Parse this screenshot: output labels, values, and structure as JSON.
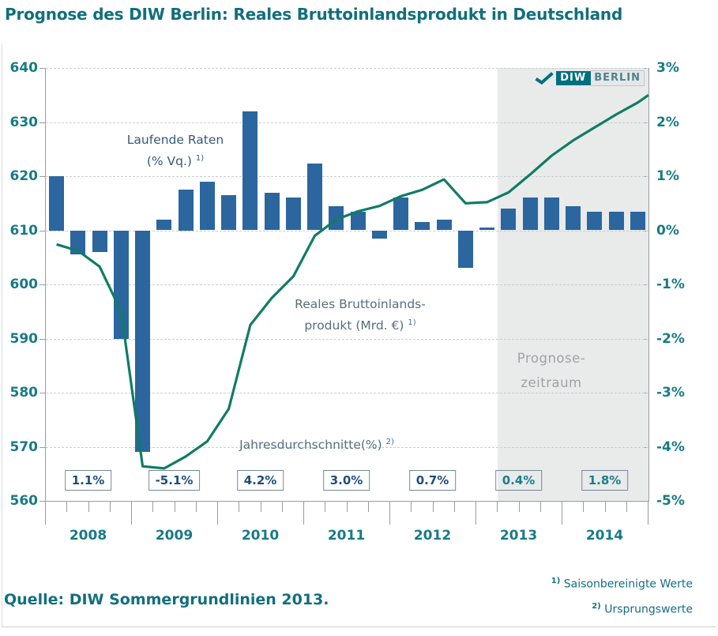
{
  "title": "Prognose des DIW Berlin: Reales Bruttoinlandsprodukt in Deutschland",
  "logo": {
    "diw": "DIW",
    "berlin": "BERLIN"
  },
  "source": "Quelle: DIW Sommergrundlinien 2013.",
  "footnotes": [
    {
      "sup": "1)",
      "text": "Saisonbereinigte Werte"
    },
    {
      "sup": "2)",
      "text": "Ursprungswerte"
    }
  ],
  "labels": {
    "bars_line1": "Laufende Raten",
    "bars_line2": "(% Vq.)",
    "bars_sup": "1)",
    "line_line1": "Reales Bruttoinlands-",
    "line_line2": "produkt (Mrd. €)",
    "line_sup": "1)",
    "avg_label": "Jahresdurchschnitte(%)",
    "avg_sup": "2)",
    "forecast_line1": "Prognose-",
    "forecast_line2": "zeitraum"
  },
  "chart_data": {
    "type": "combo-bar-line-dual-axis",
    "years": [
      "2008",
      "2009",
      "2010",
      "2011",
      "2012",
      "2013",
      "2014"
    ],
    "quarters_per_year": 4,
    "left_axis": {
      "ticks": [
        "640",
        "630",
        "620",
        "610",
        "600",
        "590",
        "580",
        "570",
        "560"
      ],
      "range": [
        560,
        640
      ],
      "unit": "Mrd. €"
    },
    "right_axis": {
      "ticks": [
        "3%",
        "2%",
        "1%",
        "0%",
        "-1%",
        "-2%",
        "-3%",
        "-4%",
        "-5%"
      ],
      "range": [
        -5,
        3
      ],
      "unit": "%"
    },
    "bar_series": {
      "name": "Laufende Raten (% Vq.)",
      "axis": "right",
      "values": [
        1.0,
        -0.45,
        -0.4,
        -2.0,
        -4.1,
        0.2,
        0.75,
        0.9,
        0.65,
        2.2,
        0.7,
        0.6,
        1.23,
        0.45,
        0.35,
        -0.15,
        0.6,
        0.15,
        0.2,
        -0.7,
        0.05,
        0.4,
        0.6,
        0.6,
        0.45,
        0.35,
        0.35,
        0.35
      ]
    },
    "line_series": {
      "name": "Reales Bruttoinlandsprodukt (Mrd. €)",
      "axis": "left",
      "values": [
        607.4,
        606.2,
        603.3,
        595.0,
        566.4,
        566.0,
        568.2,
        571.0,
        577.0,
        592.5,
        597.5,
        601.5,
        609.0,
        612.0,
        613.5,
        614.5,
        616.3,
        617.5,
        619.4,
        615.0,
        615.2,
        617.0,
        620.3,
        623.8,
        626.6,
        629.0,
        631.4,
        633.6
      ],
      "end_value": 635.0
    },
    "annual_averages": [
      {
        "year": "2008",
        "value": "1.1%",
        "forecast": false
      },
      {
        "year": "2009",
        "value": "-5.1%",
        "forecast": false
      },
      {
        "year": "2010",
        "value": "4.2%",
        "forecast": false
      },
      {
        "year": "2011",
        "value": "3.0%",
        "forecast": false
      },
      {
        "year": "2012",
        "value": "0.7%",
        "forecast": false
      },
      {
        "year": "2013",
        "value": "0.4%",
        "forecast": true
      },
      {
        "year": "2014",
        "value": "1.8%",
        "forecast": true
      }
    ],
    "forecast_band": {
      "start_quarter_index": 21,
      "label": "Prognose-zeitraum"
    },
    "colors": {
      "bar": "#2b669e",
      "line": "#107c66",
      "band": "#e9eaea",
      "avg_historical": "#1f4e79",
      "avg_forecast": "#17808c",
      "teal_text": "#116f7d",
      "axis_text": "#187a87"
    }
  }
}
